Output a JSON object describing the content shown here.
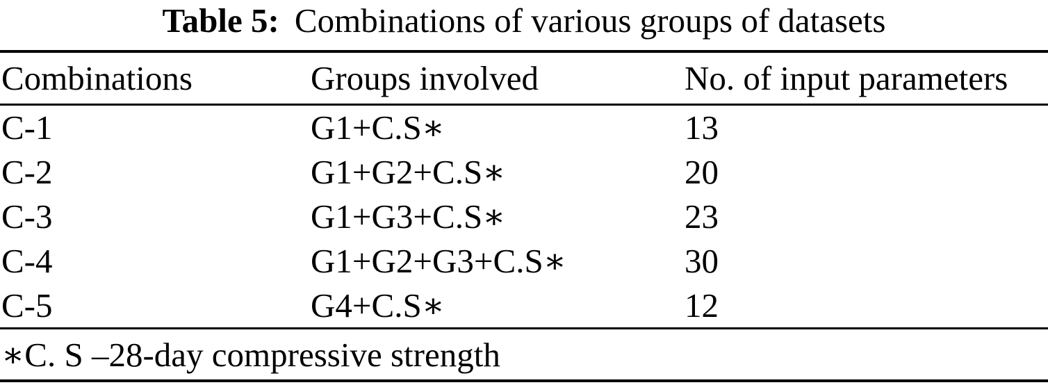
{
  "table": {
    "caption": {
      "label": "Table 5:",
      "text": "Combinations of various groups of datasets"
    },
    "columns": [
      "Combinations",
      "Groups involved",
      "No. of input parameters"
    ],
    "rows": [
      {
        "combination": "C-1",
        "groups": "G1+C.S∗",
        "params": "13"
      },
      {
        "combination": "C-2",
        "groups": "G1+G2+C.S∗",
        "params": "20"
      },
      {
        "combination": "C-3",
        "groups": "G1+G3+C.S∗",
        "params": "23"
      },
      {
        "combination": "C-4",
        "groups": "G1+G2+G3+C.S∗",
        "params": "30"
      },
      {
        "combination": "C-5",
        "groups": "G4+C.S∗",
        "params": "12"
      }
    ],
    "footnote": "∗C. S –28-day compressive strength",
    "text_color": "#000000",
    "background_color": "#ffffff"
  },
  "chart_data": {
    "type": "table",
    "title": "Table 5: Combinations of various groups of datasets",
    "columns": [
      "Combinations",
      "Groups involved",
      "No. of input parameters"
    ],
    "rows": [
      [
        "C-1",
        "G1+C.S∗",
        13
      ],
      [
        "C-2",
        "G1+G2+C.S∗",
        20
      ],
      [
        "C-3",
        "G1+G3+C.S∗",
        23
      ],
      [
        "C-4",
        "G1+G2+G3+C.S∗",
        30
      ],
      [
        "C-5",
        "G4+C.S∗",
        12
      ]
    ],
    "footnote": "∗C. S –28-day compressive strength"
  }
}
